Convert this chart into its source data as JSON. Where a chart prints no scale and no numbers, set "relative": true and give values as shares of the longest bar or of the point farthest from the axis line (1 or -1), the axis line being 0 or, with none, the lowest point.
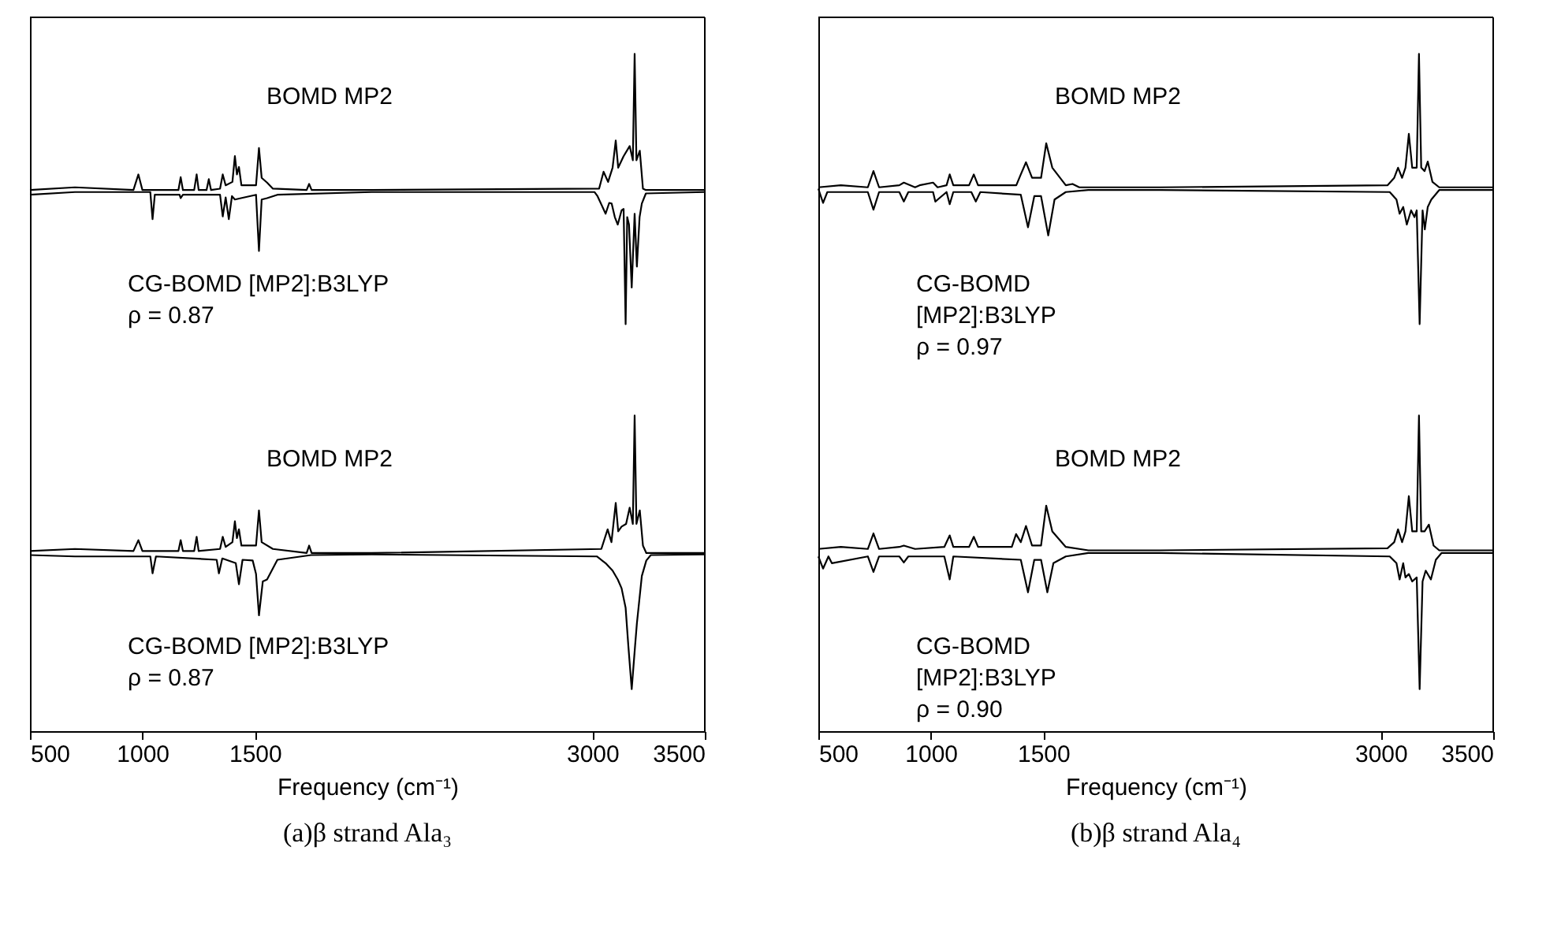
{
  "chart_data": [
    {
      "type": "line",
      "title": "(a)β strand Ala₃",
      "xlabel": "Frequency (cm⁻¹)",
      "relative": true,
      "xlim": [
        500,
        3500
      ],
      "xticks": [
        500,
        1000,
        1500,
        3000,
        3500
      ],
      "tick_labels": "x",
      "grid": false,
      "series": [
        {
          "color": "#000000",
          "x": [
            500,
            700,
            960,
            982,
            1000,
            1160,
            1170,
            1180,
            1230,
            1241,
            1250,
            1285,
            1295,
            1305,
            1345,
            1357,
            1370,
            1400,
            1411,
            1420,
            1429,
            1440,
            1505,
            1518,
            1530,
            1554,
            1580,
            1730,
            1741,
            1752,
            2018,
            3030,
            3050,
            3070,
            3090,
            3104,
            3115,
            3139,
            3166,
            3180,
            3188,
            3196,
            3211,
            3225,
            3238,
            3500
          ],
          "values": [
            0.799,
            0.803,
            0.799,
            0.822,
            0.799,
            0.799,
            0.818,
            0.799,
            0.799,
            0.822,
            0.799,
            0.799,
            0.815,
            0.799,
            0.801,
            0.822,
            0.806,
            0.811,
            0.849,
            0.822,
            0.833,
            0.806,
            0.806,
            0.861,
            0.817,
            0.81,
            0.801,
            0.799,
            0.808,
            0.799,
            0.799,
            0.801,
            0.826,
            0.811,
            0.832,
            0.872,
            0.832,
            0.849,
            0.864,
            0.843,
            1,
            0.843,
            0.857,
            0.801,
            0.799,
            0.799
          ]
        },
        {
          "color": "#000000",
          "x": [
            500,
            700,
            1035,
            1045,
            1055,
            1165,
            1170,
            1180,
            1345,
            1357,
            1370,
            1384,
            1398,
            1411,
            1438,
            1505,
            1518,
            1530,
            1554,
            1600,
            2018,
            3010,
            3023,
            3059,
            3075,
            3086,
            3100,
            3113,
            3130,
            3139,
            3148,
            3155,
            3163,
            3175,
            3188,
            3198,
            3210,
            3220,
            3238,
            3500
          ],
          "values": [
            0.792,
            0.796,
            0.796,
            0.756,
            0.792,
            0.792,
            0.787,
            0.792,
            0.792,
            0.76,
            0.788,
            0.756,
            0.79,
            0.785,
            0.787,
            0.792,
            0.709,
            0.785,
            0.787,
            0.792,
            0.796,
            0.796,
            0.79,
            0.764,
            0.78,
            0.779,
            0.759,
            0.748,
            0.769,
            0.771,
            0.601,
            0.759,
            0.748,
            0.655,
            0.764,
            0.686,
            0.759,
            0.779,
            0.794,
            0.796
          ]
        },
        {
          "color": "#000000",
          "x": [
            500,
            700,
            960,
            982,
            1000,
            1160,
            1170,
            1180,
            1230,
            1241,
            1250,
            1345,
            1357,
            1370,
            1400,
            1411,
            1420,
            1429,
            1440,
            1505,
            1518,
            1530,
            1580,
            1730,
            1741,
            1752,
            2018,
            3040,
            3068,
            3085,
            3104,
            3115,
            3130,
            3150,
            3166,
            3180,
            3188,
            3196,
            3211,
            3225,
            3240,
            3500
          ],
          "values": [
            0.266,
            0.269,
            0.266,
            0.282,
            0.266,
            0.266,
            0.282,
            0.266,
            0.266,
            0.287,
            0.266,
            0.269,
            0.287,
            0.272,
            0.279,
            0.31,
            0.285,
            0.298,
            0.274,
            0.274,
            0.326,
            0.279,
            0.269,
            0.263,
            0.274,
            0.263,
            0.263,
            0.269,
            0.298,
            0.279,
            0.337,
            0.295,
            0.302,
            0.306,
            0.33,
            0.306,
            0.466,
            0.306,
            0.326,
            0.274,
            0.263,
            0.263
          ]
        },
        {
          "color": "#000000",
          "x": [
            500,
            700,
            1035,
            1045,
            1060,
            1330,
            1340,
            1355,
            1415,
            1429,
            1445,
            1490,
            1505,
            1518,
            1535,
            1554,
            1600,
            1750,
            2018,
            3020,
            3059,
            3090,
            3113,
            3130,
            3148,
            3160,
            3175,
            3190,
            3198,
            3220,
            3240,
            3260,
            3500
          ],
          "values": [
            0.26,
            0.258,
            0.258,
            0.233,
            0.258,
            0.253,
            0.233,
            0.255,
            0.248,
            0.217,
            0.253,
            0.252,
            0.232,
            0.171,
            0.221,
            0.224,
            0.253,
            0.26,
            0.261,
            0.258,
            0.248,
            0.237,
            0.224,
            0.211,
            0.182,
            0.126,
            0.062,
            0.126,
            0.159,
            0.229,
            0.252,
            0.26,
            0.261
          ]
        }
      ],
      "annotations": [
        "BOMD MP2",
        "CG-BOMD [MP2]:B3LYP",
        "ρ = 0.87",
        "BOMD MP2",
        "CG-BOMD [MP2]:B3LYP",
        "ρ = 0.87"
      ]
    },
    {
      "type": "line",
      "title": "(b)β strand Ala₄",
      "xlabel": "Frequency (cm⁻¹)",
      "relative": true,
      "xlim": [
        500,
        3500
      ],
      "xticks": [
        500,
        1000,
        1500,
        3000,
        3500
      ],
      "tick_labels": "x",
      "grid": false,
      "series": [
        {
          "color": "#000000",
          "x": [
            500,
            600,
            720,
            745,
            770,
            860,
            880,
            930,
            950,
            1010,
            1030,
            1070,
            1084,
            1100,
            1170,
            1191,
            1210,
            1380,
            1400,
            1423,
            1450,
            1490,
            1513,
            1540,
            1600,
            1630,
            1660,
            1700,
            2018,
            3030,
            3060,
            3077,
            3095,
            3110,
            3125,
            3140,
            3160,
            3170,
            3180,
            3195,
            3209,
            3230,
            3260,
            3500
          ],
          "values": [
            0.803,
            0.806,
            0.803,
            0.827,
            0.803,
            0.806,
            0.81,
            0.803,
            0.806,
            0.81,
            0.803,
            0.806,
            0.822,
            0.806,
            0.806,
            0.822,
            0.806,
            0.806,
            0.822,
            0.84,
            0.817,
            0.817,
            0.868,
            0.832,
            0.806,
            0.808,
            0.803,
            0.803,
            0.803,
            0.806,
            0.817,
            0.832,
            0.817,
            0.832,
            0.882,
            0.832,
            0.832,
            1,
            0.832,
            0.827,
            0.841,
            0.811,
            0.803,
            0.803
          ]
        },
        {
          "color": "#000000",
          "x": [
            500,
            521,
            540,
            720,
            745,
            770,
            860,
            880,
            900,
            1010,
            1020,
            1070,
            1084,
            1100,
            1180,
            1200,
            1220,
            1400,
            1432,
            1460,
            1490,
            1522,
            1550,
            1600,
            1700,
            2018,
            3040,
            3070,
            3084,
            3100,
            3116,
            3135,
            3150,
            3160,
            3173,
            3186,
            3196,
            3209,
            3225,
            3260,
            3500
          ],
          "values": [
            0.801,
            0.78,
            0.796,
            0.796,
            0.77,
            0.796,
            0.796,
            0.782,
            0.796,
            0.796,
            0.782,
            0.796,
            0.778,
            0.796,
            0.796,
            0.782,
            0.796,
            0.792,
            0.744,
            0.79,
            0.79,
            0.732,
            0.785,
            0.796,
            0.799,
            0.799,
            0.796,
            0.785,
            0.764,
            0.774,
            0.748,
            0.769,
            0.759,
            0.769,
            0.601,
            0.769,
            0.741,
            0.774,
            0.785,
            0.799,
            0.799
          ]
        },
        {
          "color": "#000000",
          "x": [
            500,
            600,
            720,
            745,
            770,
            860,
            880,
            930,
            1060,
            1084,
            1100,
            1170,
            1191,
            1210,
            1360,
            1379,
            1400,
            1423,
            1450,
            1490,
            1513,
            1540,
            1600,
            1700,
            2018,
            3030,
            3060,
            3077,
            3095,
            3110,
            3125,
            3140,
            3160,
            3170,
            3180,
            3195,
            3214,
            3235,
            3260,
            3500
          ],
          "values": [
            0.269,
            0.272,
            0.269,
            0.292,
            0.269,
            0.272,
            0.274,
            0.269,
            0.272,
            0.289,
            0.272,
            0.272,
            0.287,
            0.272,
            0.272,
            0.291,
            0.279,
            0.303,
            0.274,
            0.274,
            0.333,
            0.295,
            0.272,
            0.267,
            0.267,
            0.27,
            0.279,
            0.298,
            0.279,
            0.295,
            0.347,
            0.295,
            0.295,
            0.466,
            0.295,
            0.295,
            0.305,
            0.274,
            0.267,
            0.267
          ]
        },
        {
          "color": "#000000",
          "x": [
            500,
            521,
            545,
            560,
            720,
            745,
            770,
            860,
            880,
            900,
            1060,
            1084,
            1100,
            1400,
            1432,
            1460,
            1490,
            1518,
            1545,
            1600,
            1700,
            2018,
            3040,
            3070,
            3084,
            3100,
            3110,
            3125,
            3140,
            3160,
            3173,
            3186,
            3200,
            3223,
            3245,
            3270,
            3500
          ],
          "values": [
            0.258,
            0.24,
            0.258,
            0.248,
            0.258,
            0.235,
            0.258,
            0.258,
            0.249,
            0.258,
            0.258,
            0.224,
            0.258,
            0.253,
            0.205,
            0.253,
            0.253,
            0.205,
            0.248,
            0.258,
            0.263,
            0.263,
            0.258,
            0.248,
            0.224,
            0.248,
            0.227,
            0.232,
            0.221,
            0.227,
            0.062,
            0.221,
            0.237,
            0.224,
            0.253,
            0.263,
            0.263
          ]
        }
      ],
      "annotations": [
        "BOMD MP2",
        "CG-BOMD",
        "[MP2]:B3LYP",
        "ρ = 0.97",
        "BOMD MP2",
        "CG-BOMD",
        "[MP2]:B3LYP",
        "ρ = 0.90"
      ]
    }
  ]
}
